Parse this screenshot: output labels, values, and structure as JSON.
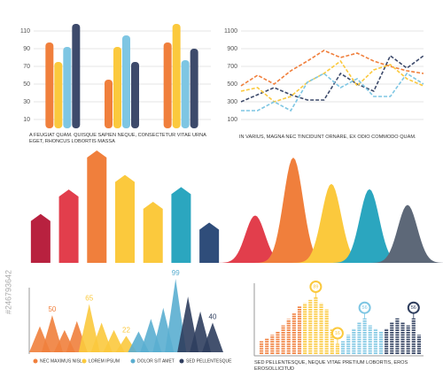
{
  "chart_data": [
    {
      "type": "grouped_bar",
      "caption": "A FEUGIAT QUAM. QUISQUE SAPIEN NEQUE, CONSECTETUR VITAE URNA EGET, RHONCUS LOBORTIS MASSA",
      "categories": [
        null,
        null,
        null
      ],
      "series": [
        {
          "color": "#f07f3c",
          "values": [
            97,
            55,
            97
          ]
        },
        {
          "color": "#fbc93d",
          "values": [
            75,
            92,
            118
          ]
        },
        {
          "color": "#7ec6e3",
          "values": [
            92,
            105,
            77
          ]
        },
        {
          "color": "#3d4a6b",
          "values": [
            118,
            75,
            90
          ]
        }
      ],
      "ylim": [
        0,
        120
      ],
      "yticks": [
        10,
        30,
        50,
        70,
        90,
        110
      ],
      "grid": true
    },
    {
      "type": "line",
      "caption": "IN VARIUS, MAGNA NEC TINCIDUNT ORNARE, EX ODIO COMMODO QUAM.",
      "categories": [
        null,
        null,
        null,
        null,
        null,
        null,
        null,
        null,
        null,
        null,
        null,
        null
      ],
      "series": [
        {
          "color": "#f07f3c",
          "values": [
            480,
            600,
            500,
            650,
            760,
            880,
            800,
            850,
            760,
            700,
            650,
            620
          ]
        },
        {
          "color": "#3d4a6b",
          "values": [
            300,
            380,
            460,
            380,
            320,
            320,
            620,
            500,
            420,
            820,
            680,
            820
          ]
        },
        {
          "color": "#fbc93d",
          "values": [
            420,
            460,
            300,
            360,
            520,
            620,
            760,
            480,
            660,
            720,
            560,
            480
          ]
        },
        {
          "color": "#7ec6e3",
          "values": [
            200,
            200,
            300,
            200,
            520,
            620,
            460,
            560,
            360,
            360,
            620,
            500
          ]
        }
      ],
      "ylim": [
        0,
        1200
      ],
      "yticks": [
        100,
        300,
        500,
        700,
        900,
        1100
      ],
      "grid": true
    },
    {
      "type": "arrow_bar",
      "values": [
        40,
        60,
        92,
        72,
        50,
        62,
        33
      ],
      "colors": [
        "#b8213f",
        "#e23e4c",
        "#f07f3c",
        "#fbc93d",
        "#fbc93d",
        "#2ba6bf",
        "#2f4d7a"
      ]
    },
    {
      "type": "bell",
      "values": [
        45,
        100,
        75,
        70,
        55
      ],
      "colors": [
        "#e23e4c",
        "#f07f3c",
        "#fbc93d",
        "#2ba6bf",
        "#5d6878"
      ]
    },
    {
      "type": "mountain",
      "series": [
        {
          "name": "NEC MAXIMUS NISL",
          "color": "#f07f3c",
          "values": [
            35,
            50,
            30,
            42
          ],
          "value_labels": [
            null,
            "50",
            null,
            null
          ]
        },
        {
          "name": "LOREM IPSUM",
          "color": "#fbc93d",
          "values": [
            65,
            40,
            30,
            22
          ],
          "value_labels": [
            "65",
            null,
            null,
            "22"
          ]
        },
        {
          "name": "DOLOR SIT AMET",
          "color": "#5aaed0",
          "values": [
            28,
            45,
            60,
            99
          ],
          "value_labels": [
            null,
            null,
            null,
            "99"
          ]
        },
        {
          "name": "SED PELLENTESQUE",
          "color": "#2f3e5e",
          "values": [
            75,
            55,
            40
          ],
          "value_labels": [
            null,
            null,
            "40"
          ]
        }
      ]
    },
    {
      "type": "dot_column",
      "caption": "SED PELLENTESQUE, NEQUE VITAE PRETIUM LOBORTIS, EROS EROSOLLICITUD",
      "values": [
        20,
        25,
        30,
        35,
        45,
        55,
        65,
        75,
        80,
        85,
        89,
        80,
        70,
        40,
        16,
        20,
        30,
        40,
        50,
        56,
        45,
        40,
        35,
        40,
        50,
        56,
        50,
        45,
        56,
        30
      ],
      "value_labels": [
        null,
        null,
        null,
        null,
        null,
        null,
        null,
        null,
        null,
        null,
        "89",
        null,
        null,
        null,
        "16",
        null,
        null,
        null,
        null,
        "56",
        null,
        null,
        null,
        null,
        null,
        null,
        null,
        null,
        "56",
        null
      ],
      "colors": [
        "#f07f3c",
        "#fbc93d",
        "#7ec6e3",
        "#2f3e5e"
      ]
    }
  ],
  "watermark": "#246793642"
}
